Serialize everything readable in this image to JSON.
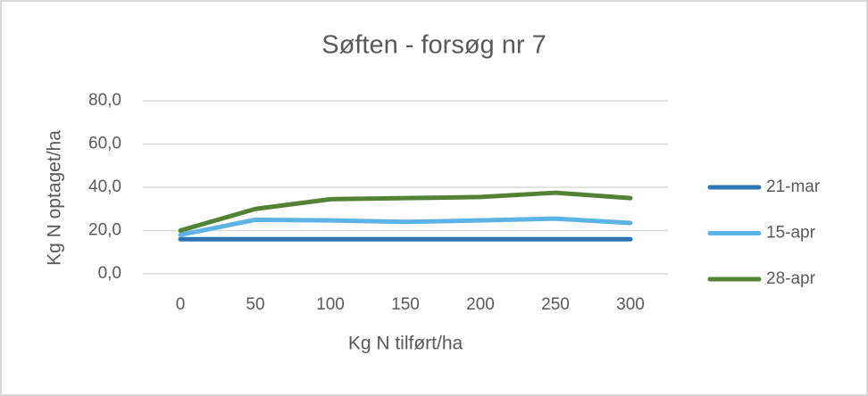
{
  "chart_data": {
    "type": "line",
    "title": "Søften - forsøg nr 7",
    "x_label": "Kg N tilført/ha",
    "y_label": "Kg N optaget/ha",
    "categories": [
      "0",
      "50",
      "100",
      "150",
      "200",
      "250",
      "300"
    ],
    "series": [
      {
        "name": "21-mar",
        "color": "#2e75b6",
        "values": [
          16,
          16,
          16,
          16,
          16,
          16,
          16
        ]
      },
      {
        "name": "15-apr",
        "color": "#5eb3e6",
        "values": [
          18,
          25,
          24.7,
          24,
          24.7,
          25.5,
          23.5
        ]
      },
      {
        "name": "28-apr",
        "color": "#548235",
        "values": [
          20,
          30,
          34.5,
          35,
          35.5,
          37.5,
          35
        ]
      }
    ],
    "ylim": [
      0,
      80
    ],
    "yticks": [
      {
        "value": 0,
        "label": "0,0"
      },
      {
        "value": 20,
        "label": "20,0"
      },
      {
        "value": 40,
        "label": "40,0"
      },
      {
        "value": 60,
        "label": "60,0"
      },
      {
        "value": 80,
        "label": "80,0"
      }
    ],
    "grid": true,
    "legend": "right"
  }
}
